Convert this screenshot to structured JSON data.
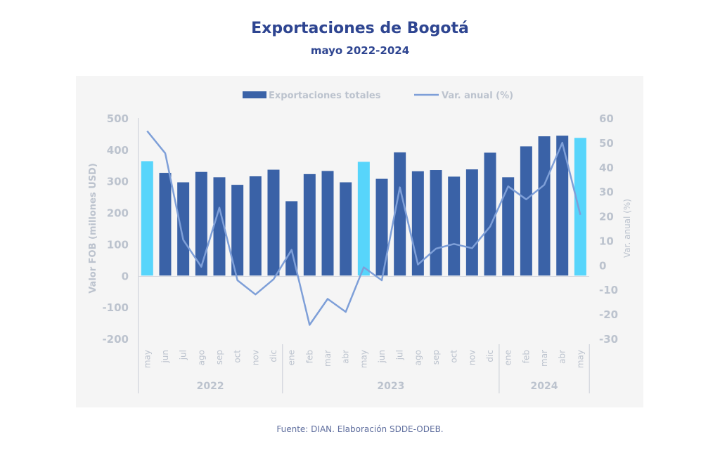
{
  "chart_data": {
    "type": "bar",
    "title": "Exportaciones de Bogotá",
    "subtitle": "mayo 2022-2024",
    "categories": [
      "may",
      "jun",
      "jul",
      "ago",
      "sep",
      "oct",
      "nov",
      "dic",
      "ene",
      "feb",
      "mar",
      "abr",
      "may",
      "jun",
      "jul",
      "ago",
      "sep",
      "oct",
      "nov",
      "dic",
      "ene",
      "feb",
      "mar",
      "abr",
      "may"
    ],
    "groups": [
      {
        "label": "2022",
        "start": 0,
        "end": 7
      },
      {
        "label": "2023",
        "start": 8,
        "end": 19
      },
      {
        "label": "2024",
        "start": 20,
        "end": 24
      }
    ],
    "highlight_indices": [
      0,
      12,
      24
    ],
    "series": [
      {
        "name": "Exportaciones totales",
        "type": "bar",
        "axis": "left",
        "values": [
          363,
          326,
          296,
          329,
          312,
          288,
          315,
          336,
          236,
          322,
          332,
          296,
          361,
          307,
          391,
          331,
          335,
          314,
          337,
          390,
          312,
          410,
          442,
          444,
          437
        ]
      },
      {
        "name": "Var. anual (%)",
        "type": "line",
        "axis": "right",
        "values": [
          54.7,
          45.6,
          10.3,
          -0.7,
          23.4,
          -6.2,
          -12.0,
          -5.8,
          6.2,
          -24.4,
          -13.8,
          -19.1,
          -0.9,
          -6.2,
          31.7,
          0.2,
          6.7,
          8.6,
          6.9,
          15.7,
          32.1,
          26.8,
          32.7,
          49.9,
          20.5
        ]
      }
    ],
    "ylabel": "Valor FOB (millones USD)",
    "ylim": [
      -200,
      500
    ],
    "yticks": [
      "500",
      "400",
      "300",
      "200",
      "100",
      "0",
      "-100",
      "-200"
    ],
    "ytick_values": [
      500,
      400,
      300,
      200,
      100,
      0,
      -100,
      -200
    ],
    "y2label": "Var. anual (%)",
    "y2lim": [
      -30,
      60
    ],
    "y2ticks": [
      "60",
      "50",
      "40",
      "30",
      "20",
      "10",
      "0",
      "-10",
      "-20",
      "-30"
    ],
    "y2tick_values": [
      60,
      50,
      40,
      30,
      20,
      10,
      0,
      -10,
      -20,
      -30
    ],
    "legend_position": "top",
    "grid": false,
    "colors": {
      "bar": "#3A62A7",
      "bar_highlight": "#57D5FB",
      "line": "#7E9FD8",
      "title": "#2E4591"
    }
  },
  "footer": "Fuente: DIAN. Elaboración SDDE-ODEB."
}
